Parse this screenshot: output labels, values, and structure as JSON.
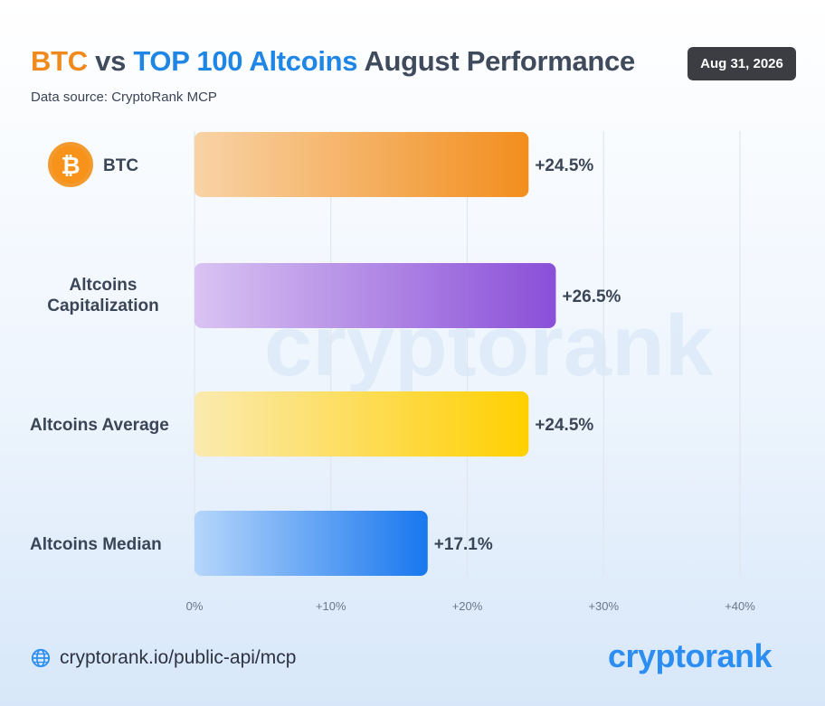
{
  "header": {
    "title_btc": "BTC",
    "title_vs": "vs",
    "title_top": "TOP 100 Altcoins",
    "title_rest": "August Performance",
    "subtitle": "Data source: CryptoRank MCP",
    "date": "Aug 31, 2026"
  },
  "watermark": "cryptorank",
  "footer": {
    "link": "cryptorank.io/public-api/mcp",
    "logo": "cryptorank"
  },
  "icons": [
    "bitcoin-icon",
    "globe-icon"
  ],
  "colors": {
    "btc": "#f28e1e",
    "altcoins_cap": "#8a4fd8",
    "altcoins_avg": "#ffd000",
    "altcoins_median": "#1877ee",
    "brand": "#2c8ef2"
  },
  "chart_data": {
    "type": "bar",
    "orientation": "horizontal",
    "categories": [
      "BTC",
      "Altcoins Capitalization",
      "Altcoins Average",
      "Altcoins Median"
    ],
    "values": [
      24.5,
      26.5,
      24.5,
      17.1
    ],
    "value_labels": [
      "+24.5%",
      "+26.5%",
      "+24.5%",
      "+17.1%"
    ],
    "xlim": [
      0,
      40
    ],
    "ticks": [
      0,
      10,
      20,
      30,
      40
    ],
    "tick_labels": [
      "0%",
      "+10%",
      "+20%",
      "+30%",
      "+40%"
    ],
    "grid": true
  }
}
